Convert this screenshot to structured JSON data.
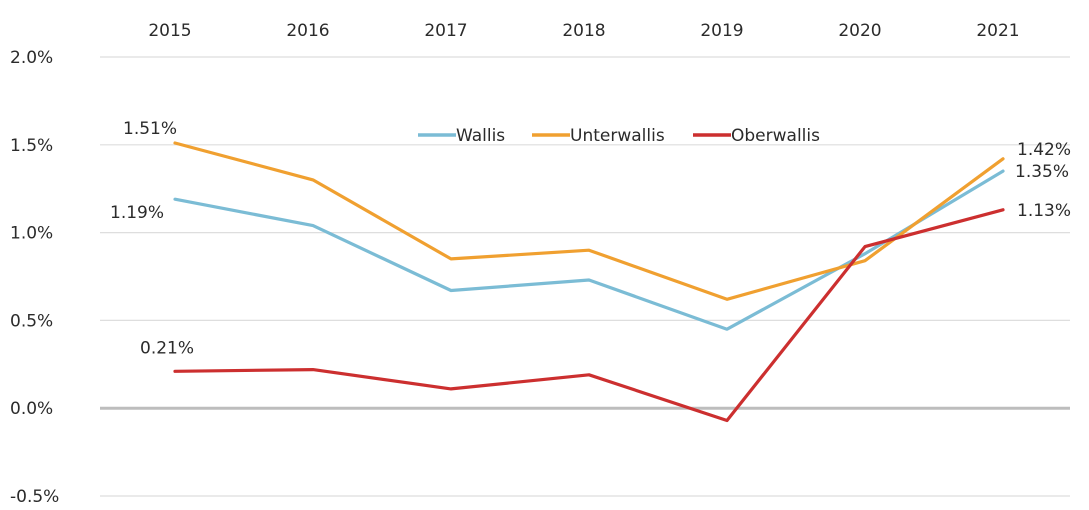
{
  "chart_data": {
    "type": "line",
    "categories": [
      "2015",
      "2016",
      "2017",
      "2018",
      "2019",
      "2020",
      "2021"
    ],
    "ylim": [
      -0.5,
      2.0
    ],
    "yticks": [
      {
        "value": 2.0,
        "label": "2.0%"
      },
      {
        "value": 1.5,
        "label": "1.5%"
      },
      {
        "value": 1.0,
        "label": "1.0%"
      },
      {
        "value": 0.5,
        "label": "0.5%"
      },
      {
        "value": 0.0,
        "label": "0.0%"
      },
      {
        "value": -0.5,
        "label": "-0.5%"
      }
    ],
    "grid": true,
    "x_axis_position": "top",
    "legend_position": "top-center",
    "series": [
      {
        "name": "Wallis",
        "color": "#7bbcd5",
        "values": [
          1.19,
          1.04,
          0.67,
          0.73,
          0.45,
          0.88,
          1.35
        ],
        "labels": [
          {
            "index": 0,
            "text": "1.19%"
          },
          {
            "index": 6,
            "text": "1.35%"
          }
        ]
      },
      {
        "name": "Unterwallis",
        "color": "#f0a030",
        "values": [
          1.51,
          1.3,
          0.85,
          0.9,
          0.62,
          0.84,
          1.42
        ],
        "labels": [
          {
            "index": 0,
            "text": "1.51%"
          },
          {
            "index": 6,
            "text": "1.42%"
          }
        ]
      },
      {
        "name": "Oberwallis",
        "color": "#cc2f2f",
        "values": [
          0.21,
          0.22,
          0.11,
          0.19,
          -0.07,
          0.92,
          1.13
        ],
        "labels": [
          {
            "index": 0,
            "text": "0.21%"
          },
          {
            "index": 6,
            "text": "1.13%"
          }
        ]
      }
    ]
  }
}
